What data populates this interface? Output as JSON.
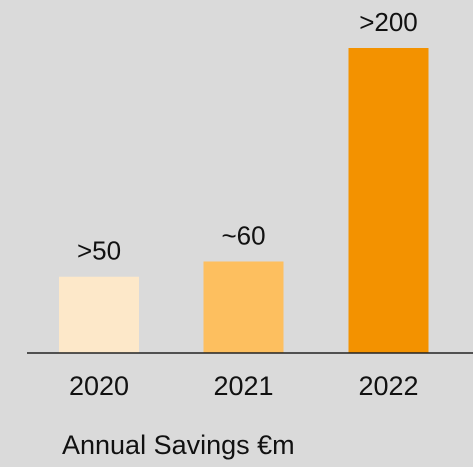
{
  "chart_data": {
    "type": "bar",
    "xlabel": "Annual Savings €m",
    "categories": [
      "2020",
      "2021",
      "2022"
    ],
    "values": [
      50,
      60,
      200
    ],
    "value_labels": [
      ">50",
      "~60",
      ">200"
    ],
    "colors": [
      "#fde8c9",
      "#fdbf5f",
      "#f39200"
    ]
  }
}
